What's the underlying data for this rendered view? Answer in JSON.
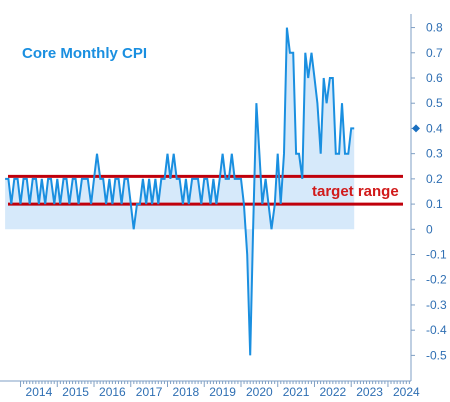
{
  "chart_data": {
    "type": "area",
    "title": "Core Monthly CPI",
    "annotation": "target range",
    "y_ticks": [
      "0.8",
      "0.7",
      "0.6",
      "0.5",
      "0.4",
      "0.3",
      "0.2",
      "0.1",
      "0",
      "-0.1",
      "-0.2",
      "-0.3",
      "-0.4",
      "-0.5"
    ],
    "y_tick_values": [
      0.8,
      0.7,
      0.6,
      0.5,
      0.4,
      0.3,
      0.2,
      0.1,
      0,
      -0.1,
      -0.2,
      -0.3,
      -0.4,
      -0.5
    ],
    "x_ticks": [
      "2014",
      "2015",
      "2016",
      "2017",
      "2018",
      "2019",
      "2020",
      "2021",
      "2022",
      "2023",
      "2024"
    ],
    "ylim": [
      -0.55,
      0.83
    ],
    "xlim": [
      2013.55,
      2024.6
    ],
    "target_range": [
      0.1,
      0.21
    ],
    "last_value": 0.4,
    "grid": false,
    "axis_position": "right",
    "colors": {
      "line": "#1a8fe0",
      "fill": "#d6e9fa",
      "target": "#c0000b",
      "axis": "#7f9fc4",
      "marker": "#1a6fc0"
    },
    "series": [
      {
        "x": [
          2013.58,
          2013.67,
          2013.75,
          2013.83,
          2013.92,
          2014.0,
          2014.08,
          2014.17,
          2014.25,
          2014.33,
          2014.42,
          2014.5,
          2014.58,
          2014.67,
          2014.75,
          2014.83,
          2014.92,
          2015.0,
          2015.08,
          2015.17,
          2015.25,
          2015.33,
          2015.42,
          2015.5,
          2015.58,
          2015.67,
          2015.75,
          2015.83,
          2015.92,
          2016.0,
          2016.08,
          2016.17,
          2016.25,
          2016.33,
          2016.42,
          2016.5,
          2016.58,
          2016.67,
          2016.75,
          2016.83,
          2016.92,
          2017.0,
          2017.08,
          2017.17,
          2017.25,
          2017.33,
          2017.42,
          2017.5,
          2017.58,
          2017.67,
          2017.75,
          2017.83,
          2017.92,
          2018.0,
          2018.08,
          2018.17,
          2018.25,
          2018.33,
          2018.42,
          2018.5,
          2018.58,
          2018.67,
          2018.75,
          2018.83,
          2018.92,
          2019.0,
          2019.08,
          2019.17,
          2019.25,
          2019.33,
          2019.42,
          2019.5,
          2019.58,
          2019.67,
          2019.75,
          2019.83,
          2019.92,
          2020.0,
          2020.08,
          2020.17,
          2020.25,
          2020.33,
          2020.42,
          2020.5,
          2020.58,
          2020.67,
          2020.75,
          2020.83,
          2020.92,
          2021.0,
          2021.08,
          2021.17,
          2021.25,
          2021.33,
          2021.42,
          2021.5,
          2021.58,
          2021.67,
          2021.75,
          2021.83,
          2021.92,
          2022.0,
          2022.08,
          2022.17,
          2022.25,
          2022.33,
          2022.42,
          2022.5,
          2022.58,
          2022.67,
          2022.75,
          2022.83,
          2022.92,
          2023.0,
          2023.08
        ],
        "values": [
          0.2,
          0.2,
          0.1,
          0.2,
          0.2,
          0.1,
          0.2,
          0.2,
          0.1,
          0.2,
          0.2,
          0.1,
          0.2,
          0.1,
          0.2,
          0.2,
          0.1,
          0.2,
          0.1,
          0.2,
          0.2,
          0.1,
          0.2,
          0.2,
          0.1,
          0.2,
          0.2,
          0.2,
          0.1,
          0.2,
          0.3,
          0.2,
          0.2,
          0.1,
          0.2,
          0.1,
          0.2,
          0.2,
          0.1,
          0.2,
          0.2,
          0.1,
          0.0,
          0.1,
          0.1,
          0.2,
          0.1,
          0.2,
          0.1,
          0.2,
          0.1,
          0.2,
          0.2,
          0.3,
          0.2,
          0.3,
          0.2,
          0.2,
          0.1,
          0.2,
          0.1,
          0.2,
          0.2,
          0.2,
          0.1,
          0.2,
          0.2,
          0.1,
          0.2,
          0.1,
          0.2,
          0.3,
          0.2,
          0.2,
          0.3,
          0.2,
          0.2,
          0.2,
          0.1,
          -0.1,
          -0.5,
          0.0,
          0.5,
          0.3,
          0.1,
          0.2,
          0.1,
          0.0,
          0.1,
          0.3,
          0.1,
          0.3,
          0.8,
          0.7,
          0.7,
          0.3,
          0.3,
          0.2,
          0.7,
          0.6,
          0.7,
          0.6,
          0.5,
          0.3,
          0.6,
          0.5,
          0.6,
          0.6,
          0.3,
          0.3,
          0.5,
          0.3,
          0.3,
          0.4,
          0.4
        ]
      }
    ]
  }
}
